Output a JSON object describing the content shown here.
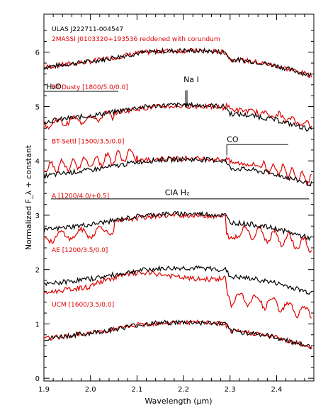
{
  "chart_data": {
    "type": "line",
    "xlabel": "Wavelength (μm)",
    "ylabel": "Normalized F_λ + constant",
    "xlim": [
      1.9,
      2.48
    ],
    "ylim": [
      -0.05,
      6.7
    ],
    "x_ticks": [
      "1.9",
      "2.0",
      "2.1",
      "2.2",
      "2.3",
      "2.4"
    ],
    "x_tick_values": [
      1.9,
      2.0,
      2.1,
      2.2,
      2.3,
      2.4
    ],
    "y_ticks": [
      "0",
      "1",
      "2",
      "3",
      "4",
      "5",
      "6"
    ],
    "y_tick_values": [
      0,
      1,
      2,
      3,
      4,
      5,
      6
    ],
    "legend": [
      {
        "text": "ULAS J222711-004547",
        "color": "#000000"
      },
      {
        "text": "2MASSI J0103320+193536 reddened with corundum",
        "color": "#e00000"
      }
    ],
    "series_colors": {
      "observed": "#000000",
      "comparison": "#e00000"
    },
    "panels": [
      {
        "label": "",
        "offset": 5.5,
        "red_shape": "match"
      },
      {
        "label": "BT-Dusty [1800/5.0/0.0]",
        "offset": 4.5,
        "red_shape": "dusty"
      },
      {
        "label": "BT-Settl [1500/3.5/0.0]",
        "offset": 3.5,
        "red_shape": "settl"
      },
      {
        "label": "A [1200/4.0/+0.5]",
        "offset": 2.5,
        "red_shape": "modelA"
      },
      {
        "label": "AE [1200/3.5/0.0]",
        "offset": 1.5,
        "red_shape": "modelAE"
      },
      {
        "label": "UCM [1600/3.5/0.0]",
        "offset": 0.5,
        "red_shape": "match"
      }
    ],
    "observed_shape": {
      "x": [
        1.9,
        1.95,
        2.0,
        2.05,
        2.1,
        2.15,
        2.2,
        2.25,
        2.29,
        2.3,
        2.35,
        2.4,
        2.45,
        2.47
      ],
      "y": [
        0.22,
        0.28,
        0.33,
        0.4,
        0.48,
        0.52,
        0.53,
        0.52,
        0.5,
        0.37,
        0.33,
        0.25,
        0.13,
        0.08
      ]
    },
    "annotations": [
      {
        "text": "H₂O",
        "x": 1.905,
        "y": 5.32,
        "bar": [
          1.9,
          2.06,
          5.28
        ]
      },
      {
        "text": "Na I",
        "x": 2.2,
        "y": 5.45,
        "bar": [
          2.206,
          2.206,
          5.02,
          5.3
        ]
      },
      {
        "text": "CO",
        "x": 2.293,
        "y": 4.35,
        "bar": [
          2.293,
          2.425,
          4.3
        ]
      },
      {
        "text": "CIA H₂",
        "x": 2.16,
        "y": 3.37,
        "bar": [
          1.915,
          2.47,
          3.3
        ]
      }
    ]
  }
}
